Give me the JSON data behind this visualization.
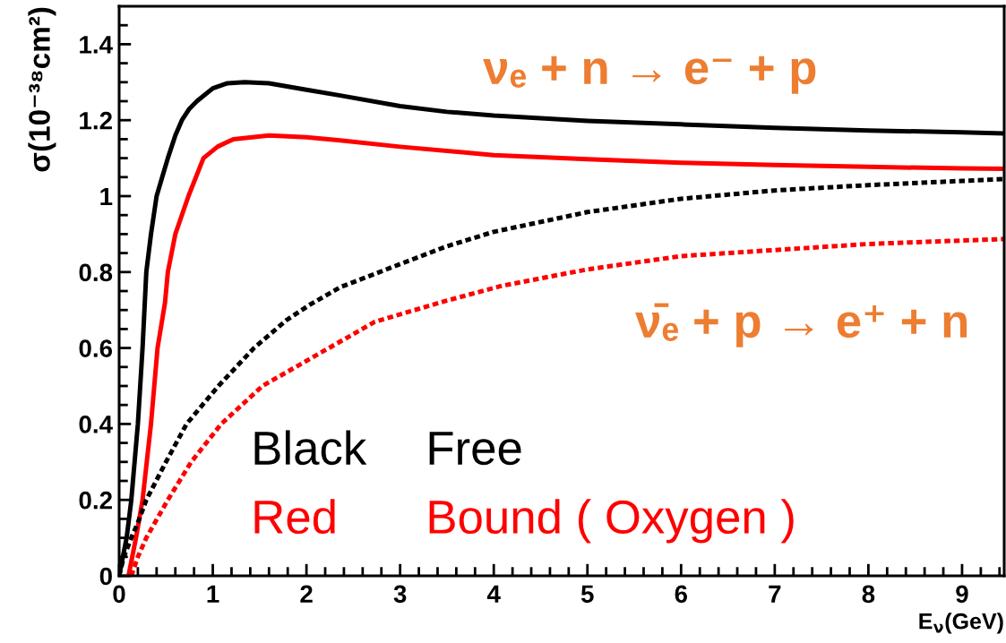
{
  "chart_data": {
    "type": "line",
    "xlabel": "E$_{ν}$(GeV)",
    "ylabel": "σ(10⁻³⁸cm²)",
    "xlim": [
      0,
      9.45
    ],
    "ylim": [
      0,
      1.5
    ],
    "xticks": [
      0,
      {
        "value": 0.2,
        "label": null
      },
      {
        "value": 0.4,
        "label": null
      },
      {
        "value": 0.6,
        "label": null
      },
      {
        "value": 0.8,
        "label": null
      },
      1,
      {
        "value": 1.2,
        "label": null
      },
      {
        "value": 1.4,
        "label": null
      },
      {
        "value": 1.6,
        "label": null
      },
      {
        "value": 1.8,
        "label": null
      },
      2,
      {
        "value": 2.2,
        "label": null
      },
      {
        "value": 2.4,
        "label": null
      },
      {
        "value": 2.6,
        "label": null
      },
      {
        "value": 2.8,
        "label": null
      },
      3,
      {
        "value": 3.2,
        "label": null
      },
      {
        "value": 3.4,
        "label": null
      },
      {
        "value": 3.6,
        "label": null
      },
      {
        "value": 3.8,
        "label": null
      },
      4,
      {
        "value": 4.2,
        "label": null
      },
      {
        "value": 4.4,
        "label": null
      },
      {
        "value": 4.6,
        "label": null
      },
      {
        "value": 4.8,
        "label": null
      },
      5,
      {
        "value": 5.2,
        "label": null
      },
      {
        "value": 5.4,
        "label": null
      },
      {
        "value": 5.6,
        "label": null
      },
      {
        "value": 5.8,
        "label": null
      },
      6,
      {
        "value": 6.2,
        "label": null
      },
      {
        "value": 6.4,
        "label": null
      },
      {
        "value": 6.6,
        "label": null
      },
      {
        "value": 6.8,
        "label": null
      },
      7,
      {
        "value": 7.2,
        "label": null
      },
      {
        "value": 7.4,
        "label": null
      },
      {
        "value": 7.6,
        "label": null
      },
      {
        "value": 7.8,
        "label": null
      },
      8,
      {
        "value": 8.2,
        "label": null
      },
      {
        "value": 8.4,
        "label": null
      },
      {
        "value": 8.6,
        "label": null
      },
      {
        "value": 8.8,
        "label": null
      },
      9,
      {
        "value": 9.2,
        "label": null
      },
      {
        "value": 9.4,
        "label": null
      }
    ],
    "yticks": [
      0,
      {
        "value": 0.05,
        "label": null
      },
      {
        "value": 0.1,
        "label": null
      },
      {
        "value": 0.15,
        "label": null
      },
      0.2,
      {
        "value": 0.25,
        "label": null
      },
      {
        "value": 0.3,
        "label": null
      },
      {
        "value": 0.35,
        "label": null
      },
      0.4,
      {
        "value": 0.45,
        "label": null
      },
      {
        "value": 0.5,
        "label": null
      },
      {
        "value": 0.55,
        "label": null
      },
      0.6,
      {
        "value": 0.65,
        "label": null
      },
      {
        "value": 0.7,
        "label": null
      },
      {
        "value": 0.75,
        "label": null
      },
      0.8,
      {
        "value": 0.85,
        "label": null
      },
      {
        "value": 0.9,
        "label": null
      },
      {
        "value": 0.95,
        "label": null
      },
      1,
      {
        "value": 1.05,
        "label": null
      },
      {
        "value": 1.1,
        "label": null
      },
      {
        "value": 1.15,
        "label": null
      },
      1.2,
      {
        "value": 1.25,
        "label": null
      },
      {
        "value": 1.3,
        "label": null
      },
      {
        "value": 1.35,
        "label": null
      },
      1.4,
      {
        "value": 1.45,
        "label": null
      }
    ],
    "grid": false,
    "annotations": [
      "νₑ + n → e⁻ + p",
      "ν̄ₑ + p → e⁺ + n",
      "Black",
      "Free",
      "Red",
      "Bound ( Oxygen )"
    ],
    "series": [
      {
        "color": "#000000",
        "line_style": "solid",
        "x": [
          0,
          0.08,
          0.13,
          0.2,
          0.25,
          0.29,
          0.34,
          0.4,
          0.46,
          0.52,
          0.6,
          0.67,
          0.75,
          0.83,
          1.0,
          1.15,
          1.34,
          1.6,
          2.0,
          2.36,
          3.0,
          3.5,
          4.0,
          5.0,
          6.0,
          7.0,
          8.0,
          9.0,
          9.45
        ],
        "values": [
          0,
          0.1,
          0.2,
          0.4,
          0.6,
          0.8,
          0.9,
          1.0,
          1.05,
          1.1,
          1.16,
          1.2,
          1.23,
          1.25,
          1.284,
          1.297,
          1.3,
          1.297,
          1.28,
          1.265,
          1.237,
          1.222,
          1.212,
          1.198,
          1.189,
          1.18,
          1.173,
          1.168,
          1.165
        ]
      },
      {
        "color": "#ff0000",
        "line_style": "solid",
        "x": [
          0.1,
          0.14,
          0.18,
          0.25,
          0.34,
          0.41,
          0.49,
          0.52,
          0.6,
          0.74,
          0.9,
          1.05,
          1.22,
          1.6,
          2.0,
          2.36,
          3.0,
          4.0,
          5.0,
          6.0,
          7.0,
          8.0,
          9.0,
          9.45
        ],
        "values": [
          0,
          0.05,
          0.1,
          0.2,
          0.4,
          0.6,
          0.72,
          0.8,
          0.9,
          1.0,
          1.1,
          1.13,
          1.15,
          1.16,
          1.155,
          1.147,
          1.13,
          1.108,
          1.097,
          1.088,
          1.082,
          1.077,
          1.073,
          1.072
        ]
      },
      {
        "color": "#000000",
        "line_style": "dotted",
        "x": [
          0,
          0.05,
          0.13,
          0.2,
          0.29,
          0.5,
          0.72,
          1.06,
          1.44,
          1.79,
          2.05,
          2.36,
          3.0,
          3.5,
          4.0,
          5.0,
          6.0,
          7.0,
          8.0,
          9.0,
          9.45
        ],
        "values": [
          0,
          0.05,
          0.1,
          0.14,
          0.2,
          0.3,
          0.4,
          0.5,
          0.6,
          0.674,
          0.716,
          0.76,
          0.821,
          0.868,
          0.906,
          0.958,
          0.993,
          1.015,
          1.029,
          1.04,
          1.045
        ]
      },
      {
        "color": "#ff0000",
        "line_style": "dotted",
        "x": [
          0.13,
          0.2,
          0.29,
          0.52,
          0.77,
          1.09,
          1.53,
          2.24,
          2.73,
          3.5,
          4.09,
          5.0,
          6.0,
          7.0,
          8.0,
          9.0,
          9.45
        ],
        "values": [
          0,
          0.05,
          0.1,
          0.2,
          0.3,
          0.4,
          0.5,
          0.6,
          0.669,
          0.725,
          0.764,
          0.807,
          0.842,
          0.858,
          0.874,
          0.883,
          0.887
        ]
      }
    ]
  }
}
